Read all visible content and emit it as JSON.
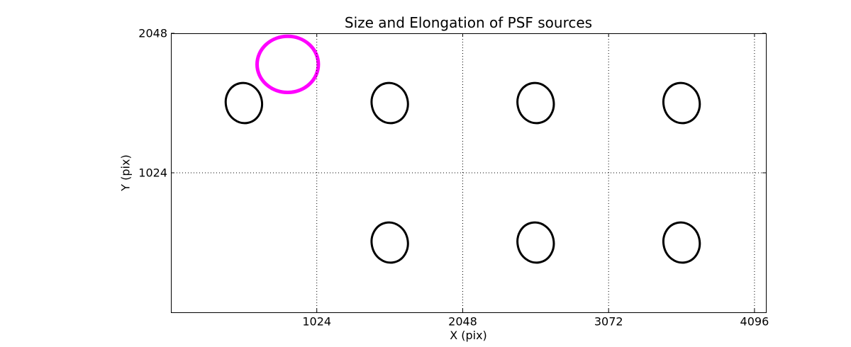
{
  "chart_data": {
    "type": "scatter",
    "title": "Size and Elongation of PSF sources",
    "xlabel": "X (pix)",
    "ylabel": "Y (pix)",
    "xlim": [
      0,
      4176
    ],
    "ylim": [
      0,
      2048
    ],
    "xticks": {
      "values": [
        1024,
        2048,
        3072,
        4096
      ],
      "labels": [
        "1024",
        "2048",
        "3072",
        "4096"
      ]
    },
    "yticks": {
      "values": [
        1024,
        2048
      ],
      "labels": [
        "1024",
        "2048"
      ]
    },
    "grid": {
      "show": true,
      "line_style": "dotted",
      "color": "#000000",
      "x_values": [
        1024,
        2048,
        3072,
        4096
      ],
      "y_values": [
        1024
      ]
    },
    "axes": {
      "spine_color": "#000000",
      "background": "#ffffff",
      "tick_direction": "in",
      "tick_color": "#000000"
    },
    "series": [
      {
        "name": "psf-source-ellipses",
        "marker": "ellipse",
        "stroke_color": "#000000",
        "fill": "none",
        "stroke_width": 3,
        "semi_x": 127,
        "semi_y": 148,
        "angle_deg": -12,
        "points": [
          {
            "x": 512,
            "y": 1536
          },
          {
            "x": 1536,
            "y": 1536
          },
          {
            "x": 2560,
            "y": 1536
          },
          {
            "x": 3584,
            "y": 1536
          },
          {
            "x": 1536,
            "y": 512
          },
          {
            "x": 2560,
            "y": 512
          },
          {
            "x": 3584,
            "y": 512
          }
        ]
      },
      {
        "name": "highlighted-source-ellipse",
        "marker": "ellipse",
        "stroke_color": "#ff00ff",
        "fill": "none",
        "stroke_width": 5,
        "semi_x": 215,
        "semi_y": 206,
        "angle_deg": 0,
        "points": [
          {
            "x": 820,
            "y": 1820
          }
        ]
      }
    ]
  }
}
